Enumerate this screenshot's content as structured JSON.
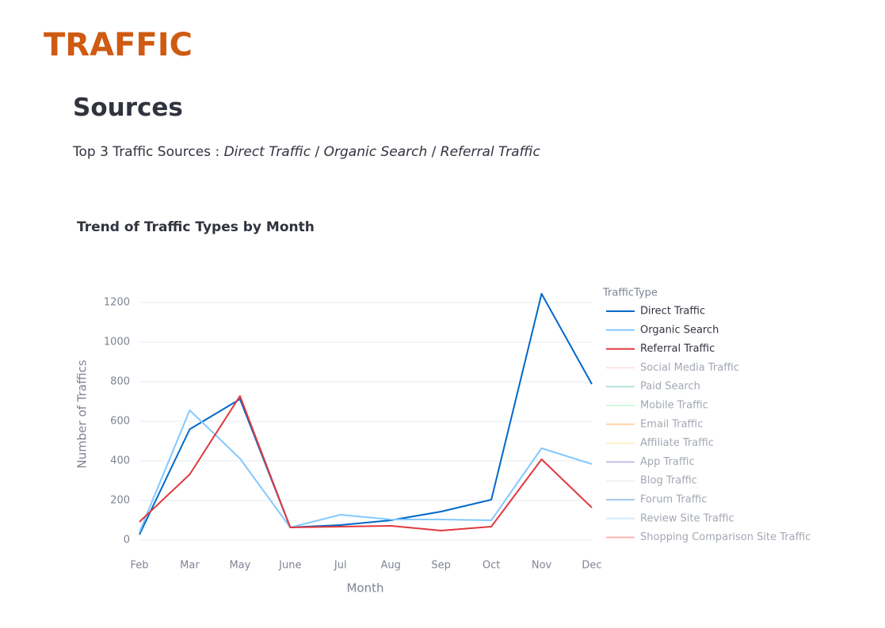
{
  "header": {
    "title": "TRAFFIC",
    "subtitle": "Sources"
  },
  "text": {
    "label": "Top 3 Traffic Sources :",
    "items": [
      "Direct Traffic",
      "Organic Search",
      "Referral Traffic"
    ],
    "separator": "/"
  },
  "chart_data": {
    "type": "line",
    "title": "Trend of Traffic Types by Month",
    "x_label": "Month",
    "y_label": "Number of Traffics",
    "legend_title": "TrafficType",
    "categories": [
      "Feb",
      "Mar",
      "May",
      "June",
      "Jul",
      "Aug",
      "Sep",
      "Oct",
      "Nov",
      "Dec"
    ],
    "ylim": [
      -70,
      1290
    ],
    "yticks": [
      0,
      200,
      400,
      600,
      800,
      1000,
      1200
    ],
    "grid": true,
    "legend": "right",
    "series": [
      {
        "name": "Direct Traffic",
        "color": "#0068c9",
        "values": [
          28,
          560,
          712,
          64,
          76,
          100,
          144,
          204,
          1244,
          788
        ]
      },
      {
        "name": "Organic Search",
        "color": "#83c9ff",
        "values": [
          40,
          656,
          412,
          64,
          128,
          104,
          104,
          100,
          464,
          384
        ]
      },
      {
        "name": "Referral Traffic",
        "color": "#e0383e",
        "values": [
          92,
          332,
          728,
          64,
          68,
          72,
          48,
          68,
          408,
          164
        ]
      },
      {
        "name": "Social Media Traffic",
        "color": "#ffabab",
        "visible": false
      },
      {
        "name": "Paid Search",
        "color": "#29b09d",
        "visible": false
      },
      {
        "name": "Mobile Traffic",
        "color": "#7defa1",
        "visible": false
      },
      {
        "name": "Email Traffic",
        "color": "#ff8700",
        "visible": false
      },
      {
        "name": "Affiliate Traffic",
        "color": "#ffd16a",
        "visible": false
      },
      {
        "name": "App Traffic",
        "color": "#6d3fc0",
        "visible": false
      },
      {
        "name": "Blog Traffic",
        "color": "#d5dae5",
        "visible": false
      },
      {
        "name": "Forum Traffic",
        "color": "#0068c9",
        "visible": false
      },
      {
        "name": "Review Site Traffic",
        "color": "#83c9ff",
        "visible": false
      },
      {
        "name": "Shopping Comparison Site Traffic",
        "color": "#ff2b2b",
        "visible": false
      }
    ]
  }
}
